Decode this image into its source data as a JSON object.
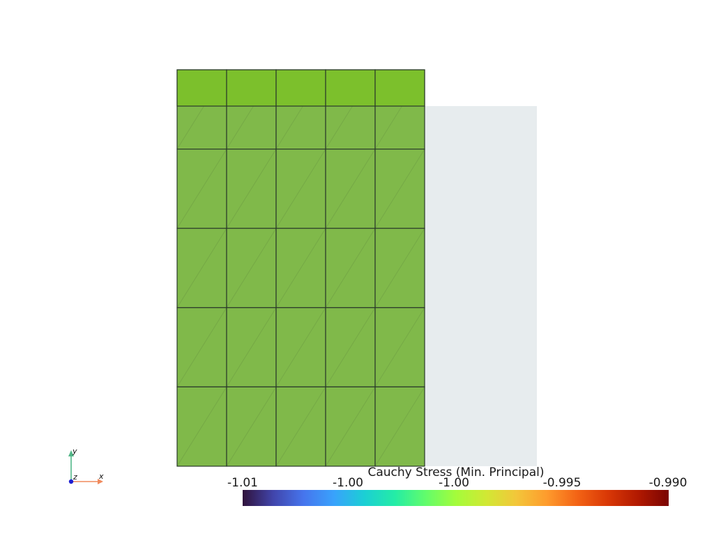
{
  "scene": {
    "background": "#ffffff",
    "reference_outline_color": "#e7ecee",
    "mesh": {
      "rows": 5,
      "cols": 5,
      "fill_color": "#80b94a",
      "top_row_color": "#7cc02c",
      "edge_color": "#2b3a2b"
    }
  },
  "colorbar": {
    "title": "Cauchy Stress (Min. Principal)",
    "tick_labels": [
      "-1.01",
      "-1.00",
      "-1.00",
      "-0.995",
      "-0.990"
    ],
    "colormap": "turbo",
    "colors": [
      "#30123b",
      "#4145ab",
      "#4675ed",
      "#39a2fc",
      "#1bcfd4",
      "#24eca6",
      "#61fc6c",
      "#a4fc3b",
      "#d1e834",
      "#f3c63a",
      "#fe9b2d",
      "#f36315",
      "#d93806",
      "#b11901",
      "#7a0402"
    ]
  },
  "orientation_axes": {
    "x_label": "x",
    "y_label": "y",
    "z_label": "z",
    "x_color": "#f08a5d",
    "y_color": "#52b788",
    "z_color": "#1f1fd1"
  }
}
